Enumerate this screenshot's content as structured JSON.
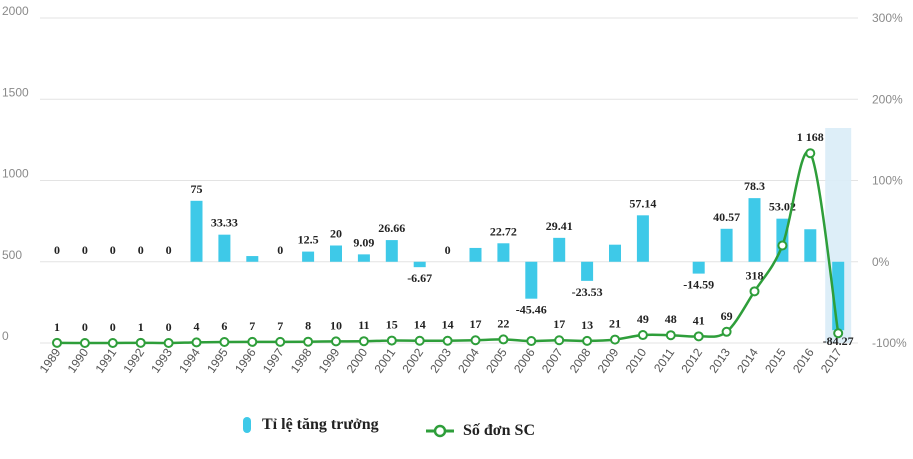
{
  "chart_data": {
    "type": "bar+line",
    "title": "",
    "categories": [
      "1989",
      "1990",
      "1991",
      "1992",
      "1993",
      "1994",
      "1995",
      "1996",
      "1997",
      "1998",
      "1999",
      "2000",
      "2001",
      "2002",
      "2003",
      "2004",
      "2005",
      "2006",
      "2007",
      "2008",
      "2009",
      "2010",
      "2011",
      "2012",
      "2013",
      "2014",
      "2015",
      "2016",
      "2017"
    ],
    "left_axis": {
      "ticks": [
        "0",
        "500",
        "1000",
        "1500",
        "2000"
      ],
      "range": [
        0,
        2000
      ]
    },
    "right_axis": {
      "ticks": [
        "-100%",
        "0%",
        "100%",
        "200%",
        "300%"
      ],
      "range": [
        -100,
        300
      ]
    },
    "grid": true,
    "legend_position": "bottom-left",
    "series": [
      {
        "name": "Tỉ lệ tăng trưởng",
        "type": "bar",
        "axis": "right",
        "color": "#3ec9e8",
        "values": [
          0,
          0,
          0,
          0,
          0,
          75,
          33.33,
          7,
          0,
          12.5,
          20,
          9.09,
          26.66,
          -6.67,
          0,
          17,
          22.72,
          -45.46,
          29.41,
          -23.53,
          21,
          57.14,
          0,
          -14.59,
          40.57,
          78.3,
          53.02,
          40,
          -84.27
        ],
        "labels": [
          "0",
          "0",
          "0",
          "0",
          "0",
          "75",
          "33.33",
          "",
          "0",
          "12.5",
          "20",
          "9.09",
          "26.66",
          "-6.67",
          "0",
          "",
          "22.72",
          "-45.46",
          "29.41",
          "-23.53",
          "",
          "57.14",
          "",
          "-14.59",
          "40.57",
          "78.3",
          "53.02",
          "",
          "-84.27"
        ]
      },
      {
        "name": "Số đơn SC",
        "type": "line",
        "axis": "left",
        "color": "#2e9e3a",
        "values": [
          1,
          0,
          0,
          1,
          0,
          4,
          6,
          7,
          7,
          8,
          10,
          11,
          15,
          14,
          14,
          17,
          22,
          12,
          17,
          13,
          21,
          49,
          48,
          41,
          69,
          318,
          600,
          1168,
          60
        ],
        "labels": [
          "1",
          "0",
          "0",
          "1",
          "0",
          "4",
          "6",
          "7",
          "7",
          "8",
          "10",
          "11",
          "15",
          "14",
          "14",
          "17",
          "22",
          "",
          "17",
          "13",
          "21",
          "49",
          "48",
          "41",
          "69",
          "318",
          "",
          "1 168",
          ""
        ]
      }
    ],
    "highlight_category": "2017"
  }
}
